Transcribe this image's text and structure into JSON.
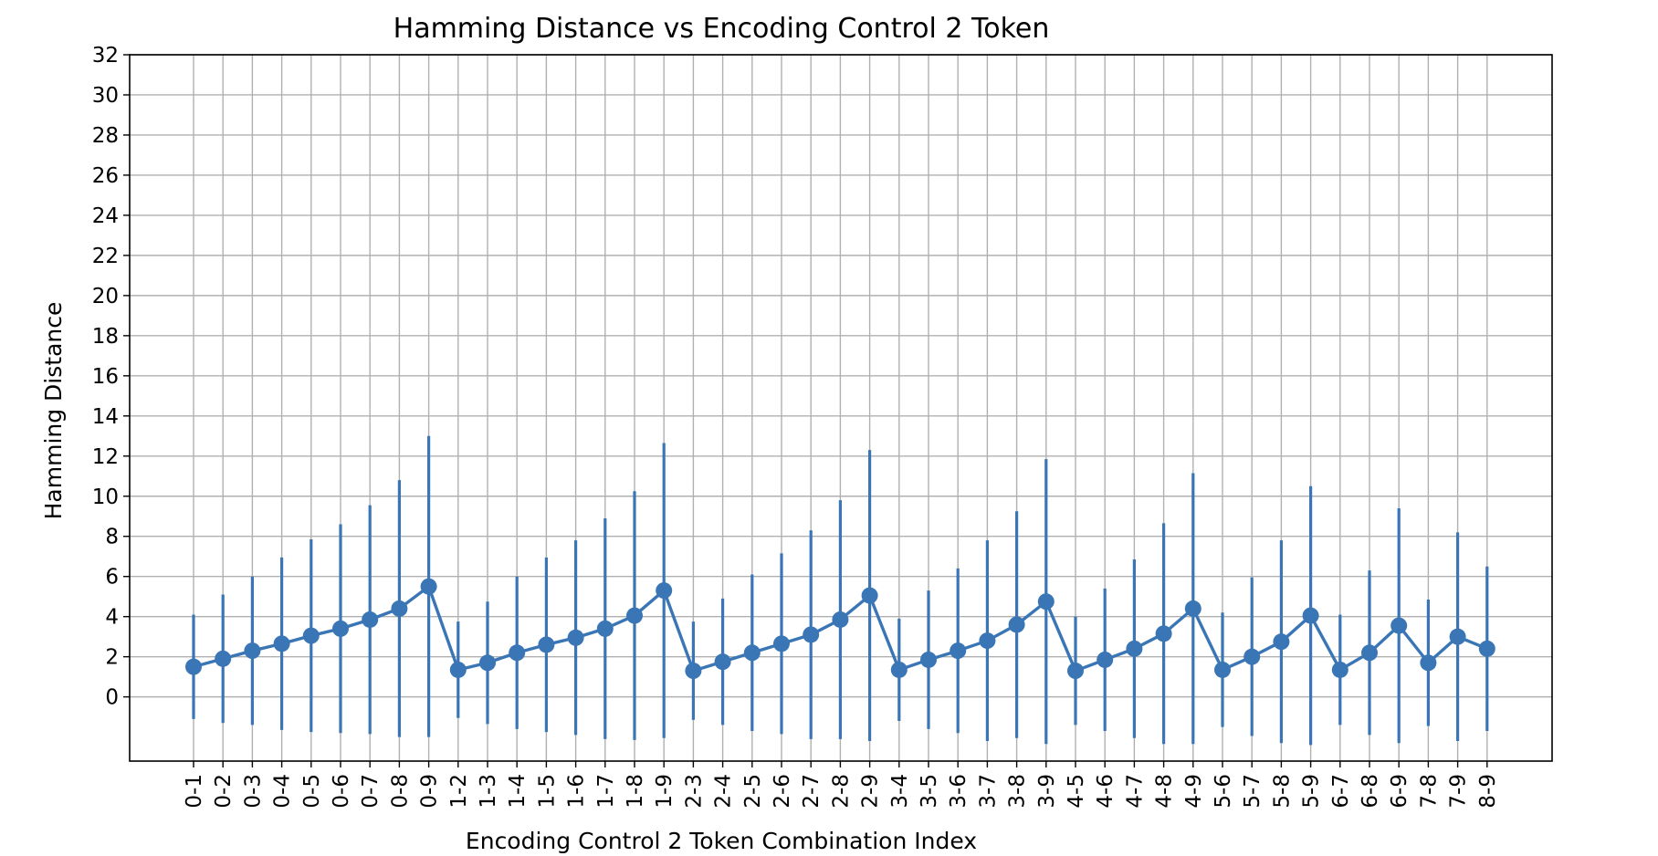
{
  "chart_data": {
    "type": "line",
    "title": "Hamming Distance vs Encoding Control 2 Token",
    "xlabel": "Encoding Control 2 Token Combination Index",
    "ylabel": "Hamming Distance",
    "ylim": [
      -3.2,
      32
    ],
    "yticks": [
      0,
      2,
      4,
      6,
      8,
      10,
      12,
      14,
      16,
      18,
      20,
      22,
      24,
      26,
      28,
      30,
      32
    ],
    "grid": true,
    "error_bars": "vertical, symmetric about the mean",
    "series_color": "#3a76b5",
    "categories": [
      "0-1",
      "0-2",
      "0-3",
      "0-4",
      "0-5",
      "0-6",
      "0-7",
      "0-8",
      "0-9",
      "1-2",
      "1-3",
      "1-4",
      "1-5",
      "1-6",
      "1-7",
      "1-8",
      "1-9",
      "2-3",
      "2-4",
      "2-5",
      "2-6",
      "2-7",
      "2-8",
      "2-9",
      "3-4",
      "3-5",
      "3-6",
      "3-7",
      "3-8",
      "3-9",
      "4-5",
      "4-6",
      "4-7",
      "4-8",
      "4-9",
      "5-6",
      "5-7",
      "5-8",
      "5-9",
      "6-7",
      "6-8",
      "6-9",
      "7-8",
      "7-9",
      "8-9"
    ],
    "series": [
      {
        "values": [
          1.5,
          1.9,
          2.3,
          2.65,
          3.05,
          3.4,
          3.85,
          4.4,
          5.5,
          1.35,
          1.7,
          2.2,
          2.6,
          2.95,
          3.4,
          4.05,
          5.3,
          1.3,
          1.75,
          2.2,
          2.65,
          3.1,
          3.85,
          5.05,
          1.35,
          1.85,
          2.3,
          2.8,
          3.6,
          4.75,
          1.3,
          1.85,
          2.4,
          3.15,
          4.4,
          1.35,
          2.0,
          2.75,
          4.05,
          1.35,
          2.2,
          3.55,
          1.7,
          3.0,
          2.4
        ],
        "error": [
          2.6,
          3.2,
          3.7,
          4.3,
          4.8,
          5.2,
          5.7,
          6.4,
          7.5,
          2.4,
          3.05,
          3.8,
          4.35,
          4.85,
          5.5,
          6.2,
          7.35,
          2.45,
          3.15,
          3.9,
          4.5,
          5.2,
          5.95,
          7.25,
          2.55,
          3.45,
          4.1,
          5.0,
          5.65,
          7.1,
          2.7,
          3.55,
          4.45,
          5.5,
          6.75,
          2.85,
          3.95,
          5.05,
          6.45,
          2.75,
          4.1,
          5.85,
          3.15,
          5.2,
          4.1
        ]
      }
    ]
  }
}
